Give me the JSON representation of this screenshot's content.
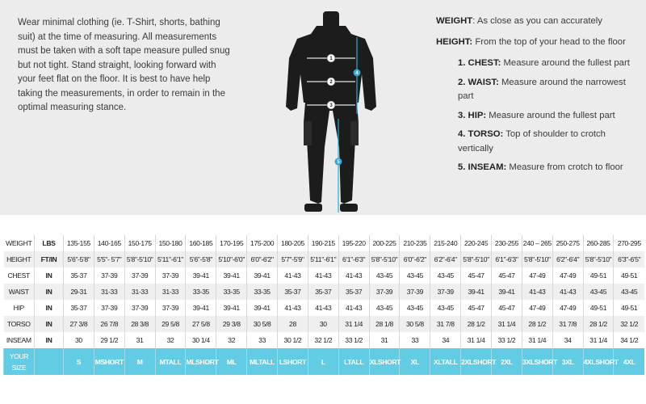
{
  "intro": "Wear minimal clothing (ie. T-Shirt, shorts, bathing suit) at the time of measuring. All measurements must be taken with a soft tape measure pulled snug but not tight. Stand straight, looking forward with your feet flat on the floor. It is best to have help taking the measurements, in order to remain in the optimal measuring stance.",
  "definitions": [
    {
      "term": "WEIGHT",
      "text": ": As close as you can accurately"
    },
    {
      "term": "HEIGHT:",
      "text": " From the top of your head to the floor"
    }
  ],
  "steps": [
    {
      "term": "1. CHEST:",
      "text": " Measure around the fullest part"
    },
    {
      "term": "2. WAIST:",
      "text": "  Measure around the narrowest part"
    },
    {
      "term": "3. HIP:",
      "text": " Measure around the fullest part"
    },
    {
      "term": "4. TORSO:",
      "text": " Top of shoulder to crotch vertically"
    },
    {
      "term": "5. INSEAM:",
      "text": " Measure from crotch to floor"
    }
  ],
  "diagram_markers": [
    "1",
    "2",
    "3",
    "4",
    "5"
  ],
  "colors": {
    "accent": "#62cce5",
    "marker": "#2fa9d6",
    "panel_bg": "#ececec"
  },
  "table": {
    "rows": [
      {
        "label": "WEIGHT",
        "unit": "LBS",
        "values": [
          "135-155",
          "140-165",
          "150-175",
          "150-180",
          "160-185",
          "170-195",
          "175-200",
          "180-205",
          "190-215",
          "195-220",
          "200-225",
          "210-235",
          "215-240",
          "220-245",
          "230-255",
          "240 – 265",
          "250-275",
          "260-285",
          "270-295"
        ]
      },
      {
        "label": "HEIGHT",
        "unit": "FT/IN",
        "values": [
          "5'6\"-5'8\"",
          "5'5\"- 5'7\"",
          "5'8\"-5'10\"",
          "5'11\"-6'1\"",
          "5'6\"-5'8\"",
          "5'10\"-6'0\"",
          "6'0\"-6'2\"",
          "5'7\"-5'9\"",
          "5'11\"-6'1\"",
          "6'1\"-6'3\"",
          "5'8\"-5'10\"",
          "6'0\"-6'2\"",
          "6'2\"-6'4\"",
          "5'8\"-5'10\"",
          "6'1\"-6'3\"",
          "5'8\"-5'10\"",
          "6'2\"-6'4\"",
          "5'8\"-5'10\"",
          "6'3\"-6'5\""
        ]
      },
      {
        "label": "CHEST",
        "unit": "IN",
        "values": [
          "35-37",
          "37-39",
          "37-39",
          "37-39",
          "39-41",
          "39-41",
          "39-41",
          "41-43",
          "41-43",
          "41-43",
          "43-45",
          "43-45",
          "43-45",
          "45-47",
          "45-47",
          "47-49",
          "47-49",
          "49-51",
          "49-51"
        ]
      },
      {
        "label": "WAIST",
        "unit": "IN",
        "values": [
          "29-31",
          "31-33",
          "31-33",
          "31-33",
          "33-35",
          "33-35",
          "33-35",
          "35-37",
          "35-37",
          "35-37",
          "37-39",
          "37-39",
          "37-39",
          "39-41",
          "39-41",
          "41-43",
          "41-43",
          "43-45",
          "43-45"
        ]
      },
      {
        "label": "HIP",
        "unit": "IN",
        "values": [
          "35-37",
          "37-39",
          "37-39",
          "37-39",
          "39-41",
          "39-41",
          "39-41",
          "41-43",
          "41-43",
          "41-43",
          "43-45",
          "43-45",
          "43-45",
          "45-47",
          "45-47",
          "47-49",
          "47-49",
          "49-51",
          "49-51"
        ]
      },
      {
        "label": "TORSO",
        "unit": "IN",
        "values": [
          "27 3/8",
          "26 7/8",
          "28 3/8",
          "29 5/8",
          "27 5/8",
          "29 3/8",
          "30 5/8",
          "28",
          "30",
          "31 1/4",
          "28 1/8",
          "30 5/8",
          "31 7/8",
          "28 1/2",
          "31 1/4",
          "28 1/2",
          "31 7/8",
          "28 1/2",
          "32 1/2"
        ]
      },
      {
        "label": "INSEAM",
        "unit": "IN",
        "values": [
          "30",
          "29 1/2",
          "31",
          "32",
          "30 1/4",
          "32",
          "33",
          "30 1/2",
          "32 1/2",
          "33 1/2",
          "31",
          "33",
          "34",
          "31 1/4",
          "33 1/2",
          "31 1/4",
          "34",
          "31 1/4",
          "34 1/2"
        ]
      }
    ],
    "size_row": {
      "label_line1": "YOUR",
      "label_line2": "SIZE",
      "unit": "",
      "values": [
        "S",
        "MSHORT",
        "M",
        "MTALL",
        "MLSHORT",
        "ML",
        "MLTALL",
        "LSHORT",
        "L",
        "LTALL",
        "XLSHORT",
        "XL",
        "XLTALL",
        "2XLSHORT",
        "2XL",
        "3XLSHORT",
        "3XL",
        "4XLSHORT",
        "4XL"
      ]
    }
  }
}
